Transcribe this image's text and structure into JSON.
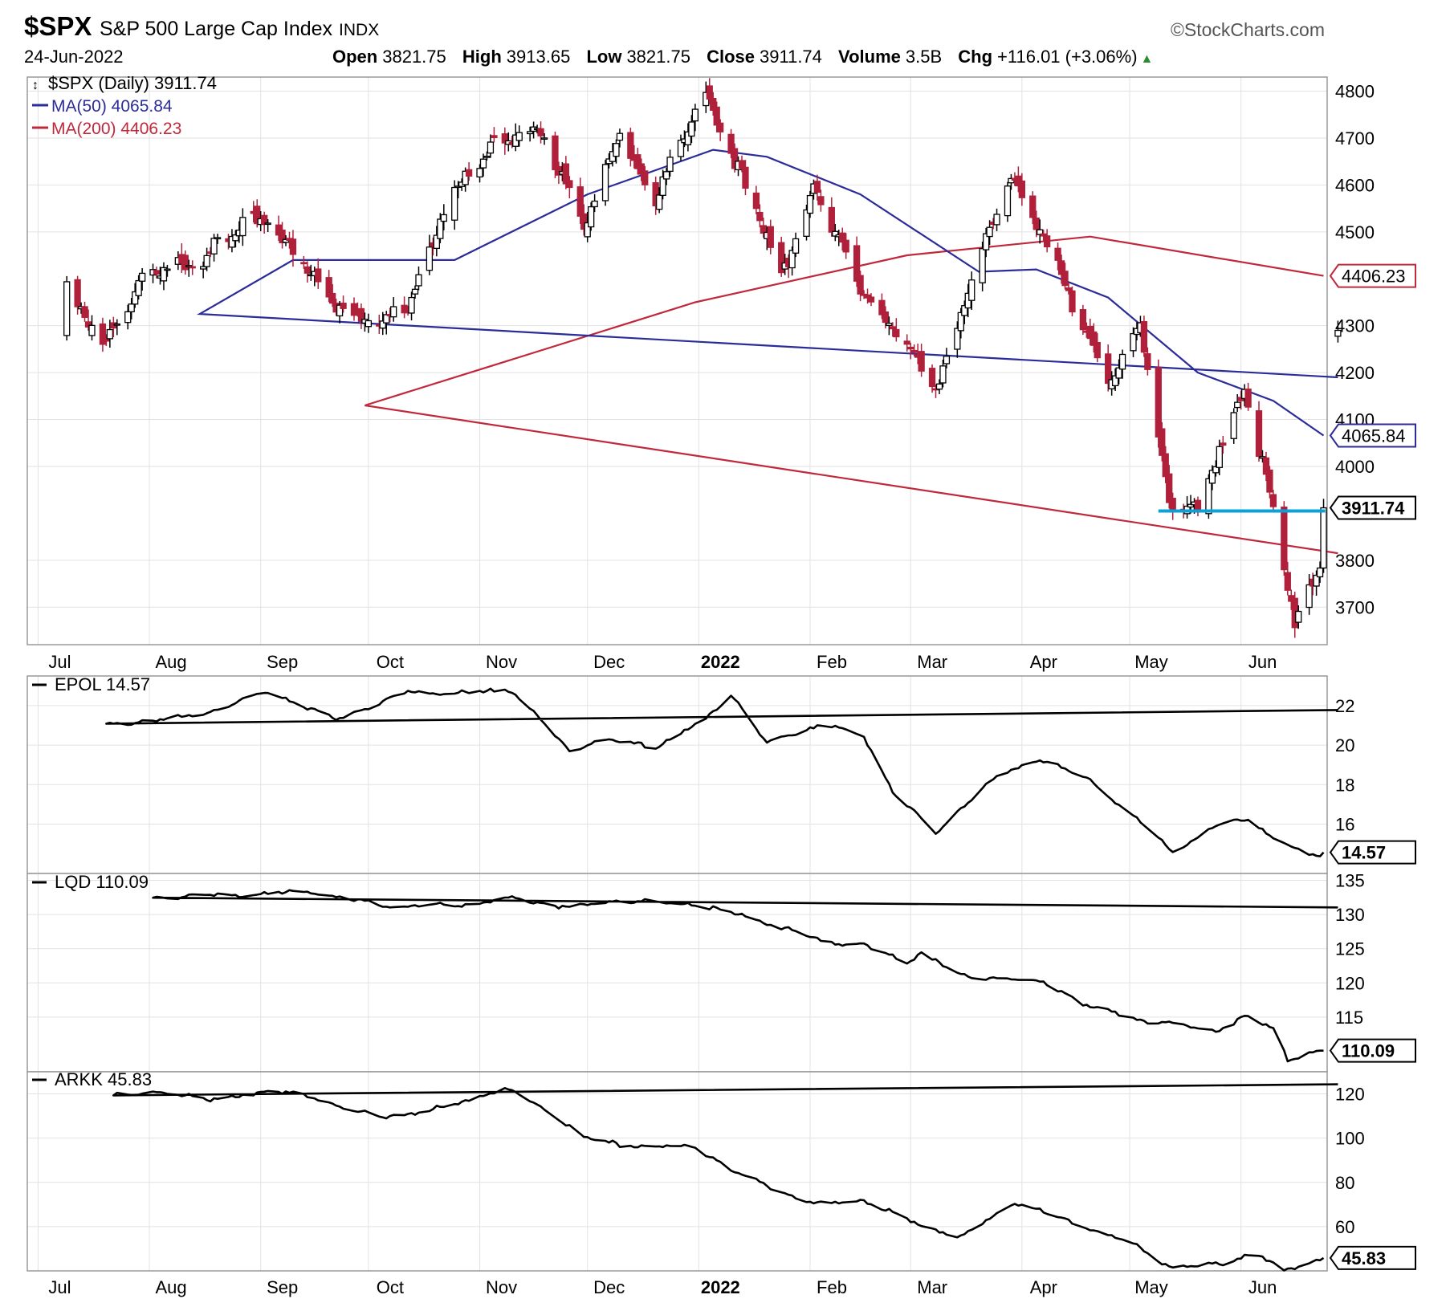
{
  "header": {
    "symbol": "$SPX",
    "name": "S&P 500 Large Cap Index",
    "exchange": "INDX",
    "date": "24-Jun-2022",
    "open_label": "Open",
    "open": "3821.75",
    "high_label": "High",
    "high": "3913.65",
    "low_label": "Low",
    "low": "3821.75",
    "close_label": "Close",
    "close": "3911.74",
    "volume_label": "Volume",
    "volume": "3.5B",
    "chg_label": "Chg",
    "chg": "+116.01 (+3.06%)",
    "up_icon": "up-triangle-icon",
    "brand": "©StockCharts.com"
  },
  "chart_data": [
    {
      "type": "candlestick",
      "ylim": [
        3620,
        4830
      ],
      "yticks": [
        3700,
        3800,
        4000,
        4100,
        4200,
        4300,
        4500,
        4600,
        4700,
        4800
      ],
      "x_tick_labels": [
        "Jul",
        "Aug",
        "Sep",
        "Oct",
        "Nov",
        "Dec",
        "2022",
        "Feb",
        "Mar",
        "Apr",
        "May",
        "Jun"
      ],
      "grid": true,
      "legend": [
        {
          "label": "$SPX (Daily) 3911.74",
          "color": "#000000"
        },
        {
          "label": "MA(50) 4065.84",
          "color": "#2b2b9a"
        },
        {
          "label": "MA(200) 4406.23",
          "color": "#c0283c"
        }
      ],
      "price_series": [
        {
          "date": "Jun 28",
          "close": 4290
        },
        {
          "date": "Jul 9",
          "close": 4370
        },
        {
          "date": "Jul 19",
          "close": 4260
        },
        {
          "date": "Jul 30",
          "close": 4395
        },
        {
          "date": "Aug 16",
          "close": 4450
        },
        {
          "date": "Sep 2",
          "close": 4535
        },
        {
          "date": "Sep 20",
          "close": 4360
        },
        {
          "date": "Oct 4",
          "close": 4300
        },
        {
          "date": "Oct 12",
          "close": 4350
        },
        {
          "date": "Oct 22",
          "close": 4545
        },
        {
          "date": "Nov 5",
          "close": 4700
        },
        {
          "date": "Nov 18",
          "close": 4705
        },
        {
          "date": "Nov 26",
          "close": 4595
        },
        {
          "date": "Dec 1",
          "close": 4515
        },
        {
          "date": "Dec 10",
          "close": 4710
        },
        {
          "date": "Dec 20",
          "close": 4570
        },
        {
          "date": "Jan 3",
          "close": 4800
        },
        {
          "date": "Jan 10",
          "close": 4670
        },
        {
          "date": "Jan 24",
          "close": 4410
        },
        {
          "date": "Feb 2",
          "close": 4590
        },
        {
          "date": "Feb 14",
          "close": 4400
        },
        {
          "date": "Feb 24",
          "close": 4290
        },
        {
          "date": "Mar 8",
          "close": 4170
        },
        {
          "date": "Mar 29",
          "close": 4630
        },
        {
          "date": "Apr 12",
          "close": 4400
        },
        {
          "date": "Apr 26",
          "close": 4175
        },
        {
          "date": "May 4",
          "close": 4300
        },
        {
          "date": "May 12",
          "close": 3930
        },
        {
          "date": "May 20",
          "close": 3901
        },
        {
          "date": "Jun 2",
          "close": 4176
        },
        {
          "date": "Jun 10",
          "close": 3900
        },
        {
          "date": "Jun 16",
          "close": 3666
        },
        {
          "date": "Jun 23",
          "close": 3795
        },
        {
          "date": "Jun 24",
          "close": 3911.74
        }
      ],
      "ma50": [
        {
          "date": "Jun 28",
          "value": 4190
        },
        {
          "date": "Aug 15",
          "value": 4325
        },
        {
          "date": "Sep 10",
          "value": 4440
        },
        {
          "date": "Oct 25",
          "value": 4440
        },
        {
          "date": "Dec 1",
          "value": 4580
        },
        {
          "date": "Jan 5",
          "value": 4675
        },
        {
          "date": "Jan 20",
          "value": 4660
        },
        {
          "date": "Feb 15",
          "value": 4580
        },
        {
          "date": "Mar 20",
          "value": 4415
        },
        {
          "date": "Apr 5",
          "value": 4420
        },
        {
          "date": "Apr 25",
          "value": 4360
        },
        {
          "date": "May 20",
          "value": 4200
        },
        {
          "date": "Jun 10",
          "value": 4140
        },
        {
          "date": "Jun 24",
          "value": 4065.84
        }
      ],
      "ma200": [
        {
          "date": "Jun 28",
          "value": 3815
        },
        {
          "date": "Sep 30",
          "value": 4130
        },
        {
          "date": "Dec 31",
          "value": 4350
        },
        {
          "date": "Feb 28",
          "value": 4450
        },
        {
          "date": "Apr 20",
          "value": 4490
        },
        {
          "date": "Jun 24",
          "value": 4406.23
        }
      ],
      "horizontal_line": {
        "value": 3905,
        "from": "May 9",
        "to": "Jun 24",
        "color": "#0aa0d8"
      },
      "price_labels": [
        {
          "text": "4406.23",
          "value": 4406.23,
          "color": "#c0283c"
        },
        {
          "text": "4065.84",
          "value": 4065.84,
          "color": "#2b2b9a"
        },
        {
          "text": "3911.74",
          "value": 3911.74,
          "color": "#000000"
        }
      ]
    },
    {
      "type": "line",
      "series": [
        {
          "name": "EPOL 14.57"
        }
      ],
      "ylim": [
        13.5,
        23.5
      ],
      "yticks": [
        16,
        18,
        20,
        22
      ],
      "grid": true,
      "points": [
        {
          "date": "Jun 28",
          "value": 21.8
        },
        {
          "date": "Jul 20",
          "value": 21.0
        },
        {
          "date": "Aug 15",
          "value": 21.5
        },
        {
          "date": "Sep 3",
          "value": 22.7
        },
        {
          "date": "Sep 22",
          "value": 21.3
        },
        {
          "date": "Oct 12",
          "value": 22.7
        },
        {
          "date": "Oct 25",
          "value": 22.6
        },
        {
          "date": "Nov 10",
          "value": 22.8
        },
        {
          "date": "Nov 26",
          "value": 19.7
        },
        {
          "date": "Dec 5",
          "value": 20.3
        },
        {
          "date": "Dec 20",
          "value": 19.9
        },
        {
          "date": "Jan 3",
          "value": 21.3
        },
        {
          "date": "Jan 10",
          "value": 22.6
        },
        {
          "date": "Jan 20",
          "value": 20.1
        },
        {
          "date": "Feb 5",
          "value": 21.1
        },
        {
          "date": "Feb 16",
          "value": 20.4
        },
        {
          "date": "Feb 24",
          "value": 17.7
        },
        {
          "date": "Mar 8",
          "value": 15.5
        },
        {
          "date": "Mar 15",
          "value": 16.8
        },
        {
          "date": "Mar 25",
          "value": 18.4
        },
        {
          "date": "Apr 6",
          "value": 19.3
        },
        {
          "date": "Apr 20",
          "value": 18.2
        },
        {
          "date": "May 2",
          "value": 16.4
        },
        {
          "date": "May 13",
          "value": 14.6
        },
        {
          "date": "May 25",
          "value": 15.9
        },
        {
          "date": "Jun 3",
          "value": 16.3
        },
        {
          "date": "Jun 10",
          "value": 15.3
        },
        {
          "date": "Jun 20",
          "value": 14.4
        },
        {
          "date": "Jun 24",
          "value": 14.57
        }
      ],
      "last_label": "14.57"
    },
    {
      "type": "line",
      "series": [
        {
          "name": "LQD 110.09"
        }
      ],
      "ylim": [
        107,
        136
      ],
      "yticks": [
        115,
        120,
        125,
        130,
        135
      ],
      "grid": true,
      "points": [
        {
          "date": "Jun 28",
          "value": 131.0
        },
        {
          "date": "Aug 2",
          "value": 132.5
        },
        {
          "date": "Sep 15",
          "value": 133.3
        },
        {
          "date": "Oct 8",
          "value": 131.1
        },
        {
          "date": "Oct 30",
          "value": 131.5
        },
        {
          "date": "Nov 10",
          "value": 132.4
        },
        {
          "date": "Nov 26",
          "value": 131.0
        },
        {
          "date": "Dec 8",
          "value": 132.0
        },
        {
          "date": "Dec 31",
          "value": 131.5
        },
        {
          "date": "Jan 12",
          "value": 130.0
        },
        {
          "date": "Jan 25",
          "value": 128.0
        },
        {
          "date": "Feb 5",
          "value": 126.0
        },
        {
          "date": "Feb 16",
          "value": 125.5
        },
        {
          "date": "Feb 28",
          "value": 123.0
        },
        {
          "date": "Mar 4",
          "value": 124.5
        },
        {
          "date": "Mar 15",
          "value": 121.0
        },
        {
          "date": "Mar 30",
          "value": 120.5
        },
        {
          "date": "Apr 8",
          "value": 120.0
        },
        {
          "date": "Apr 20",
          "value": 116.5
        },
        {
          "date": "May 5",
          "value": 114.5
        },
        {
          "date": "May 13",
          "value": 114.0
        },
        {
          "date": "May 25",
          "value": 113.0
        },
        {
          "date": "Jun 2",
          "value": 115.0
        },
        {
          "date": "Jun 10",
          "value": 113.5
        },
        {
          "date": "Jun 14",
          "value": 108.8
        },
        {
          "date": "Jun 24",
          "value": 110.09
        }
      ],
      "last_label": "110.09"
    },
    {
      "type": "line",
      "series": [
        {
          "name": "ARKK 45.83"
        }
      ],
      "ylim": [
        40,
        130
      ],
      "yticks": [
        60,
        80,
        100,
        120
      ],
      "grid": true,
      "points": [
        {
          "date": "Jun 28",
          "value": 125.0
        },
        {
          "date": "Jul 22",
          "value": 120.0
        },
        {
          "date": "Aug 10",
          "value": 120.0
        },
        {
          "date": "Aug 20",
          "value": 117.0
        },
        {
          "date": "Sep 5",
          "value": 122.0
        },
        {
          "date": "Sep 20",
          "value": 116.0
        },
        {
          "date": "Oct 5",
          "value": 109.0
        },
        {
          "date": "Oct 25",
          "value": 115.0
        },
        {
          "date": "Nov 8",
          "value": 123.0
        },
        {
          "date": "Nov 20",
          "value": 112.0
        },
        {
          "date": "Dec 1",
          "value": 100.0
        },
        {
          "date": "Dec 10",
          "value": 97.0
        },
        {
          "date": "Dec 31",
          "value": 96.0
        },
        {
          "date": "Jan 12",
          "value": 84.0
        },
        {
          "date": "Jan 25",
          "value": 75.0
        },
        {
          "date": "Feb 3",
          "value": 70.0
        },
        {
          "date": "Feb 16",
          "value": 72.0
        },
        {
          "date": "Feb 28",
          "value": 63.0
        },
        {
          "date": "Mar 15",
          "value": 55.0
        },
        {
          "date": "Mar 30",
          "value": 71.0
        },
        {
          "date": "Apr 15",
          "value": 62.0
        },
        {
          "date": "May 2",
          "value": 52.0
        },
        {
          "date": "May 13",
          "value": 41.0
        },
        {
          "date": "May 25",
          "value": 43.0
        },
        {
          "date": "Jun 5",
          "value": 48.0
        },
        {
          "date": "Jun 13",
          "value": 40.0
        },
        {
          "date": "Jun 24",
          "value": 45.83
        }
      ],
      "last_label": "45.83"
    }
  ]
}
